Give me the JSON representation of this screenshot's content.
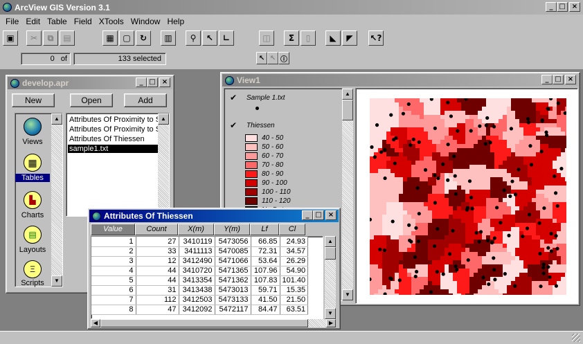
{
  "app": {
    "title": "ArcView GIS Version 3.1"
  },
  "menu": [
    "File",
    "Edit",
    "Table",
    "Field",
    "XTools",
    "Window",
    "Help"
  ],
  "toolbar": {
    "icons": [
      "save-icon",
      "cut-icon",
      "copy-icon",
      "paste-icon",
      "properties-icon",
      "select-icon",
      "refresh-icon",
      "chart-icon",
      "find-icon",
      "query-icon",
      "sort-icon",
      "promote-icon",
      "summarize-icon",
      "calculate-icon",
      "sort-ascending-icon",
      "sort-descending-icon",
      "help-cursor-icon"
    ],
    "tools": [
      "pointer-tool-icon",
      "edit-tool-icon",
      "identify-tool-icon"
    ]
  },
  "status": {
    "selected_count": "0",
    "of_label": "of",
    "total_label": "133 selected"
  },
  "project": {
    "title": "develop.apr",
    "buttons": {
      "new": "New",
      "open": "Open",
      "add": "Add"
    },
    "doc_types": [
      {
        "label": "Views",
        "icon": "views-icon"
      },
      {
        "label": "Tables",
        "icon": "tables-icon"
      },
      {
        "label": "Charts",
        "icon": "charts-icon"
      },
      {
        "label": "Layouts",
        "icon": "layouts-icon"
      },
      {
        "label": "Scripts",
        "icon": "scripts-icon"
      }
    ],
    "selected_doc_type": "Tables",
    "items": [
      "Attributes Of Proximity to S",
      "Attributes Of Proximity to S",
      "Attributes Of Thiessen",
      "sample1.txt"
    ],
    "selected_item": "sample1.txt"
  },
  "view": {
    "title": "View1",
    "legend": {
      "layer1": "Sample 1.txt",
      "layer2": "Thiessen",
      "classes": [
        {
          "label": "40 - 50",
          "color": "#ffe0e0"
        },
        {
          "label": "50 - 60",
          "color": "#ffc0c0"
        },
        {
          "label": "60 - 70",
          "color": "#ff9a9a"
        },
        {
          "label": "70 - 80",
          "color": "#ff6868"
        },
        {
          "label": "80 - 90",
          "color": "#ff1a1a"
        },
        {
          "label": "90 - 100",
          "color": "#d40000"
        },
        {
          "label": "100 - 110",
          "color": "#a00000"
        },
        {
          "label": "110 - 120",
          "color": "#6e0000"
        },
        {
          "label": "No Data",
          "color": "#000000"
        }
      ]
    }
  },
  "attr_table": {
    "title": "Attributes Of Thiessen",
    "columns": [
      "Value",
      "Count",
      "X(m)",
      "Y(m)",
      "Lf",
      "Cl"
    ],
    "rows": [
      [
        "1",
        "27",
        "3410119",
        "5473056",
        "66.85",
        "24.93"
      ],
      [
        "2",
        "33",
        "3411113",
        "5470085",
        "72.31",
        "34.57"
      ],
      [
        "3",
        "12",
        "3412490",
        "5471066",
        "53.64",
        "26.29"
      ],
      [
        "4",
        "44",
        "3410720",
        "5471365",
        "107.96",
        "54.90"
      ],
      [
        "5",
        "44",
        "3413354",
        "5471362",
        "107.83",
        "101.40"
      ],
      [
        "6",
        "31",
        "3413438",
        "5473013",
        "59.71",
        "15.35"
      ],
      [
        "7",
        "112",
        "3412503",
        "5473133",
        "41.50",
        "21.50"
      ],
      [
        "8",
        "47",
        "3412092",
        "5472117",
        "84.47",
        "63.51"
      ]
    ]
  }
}
